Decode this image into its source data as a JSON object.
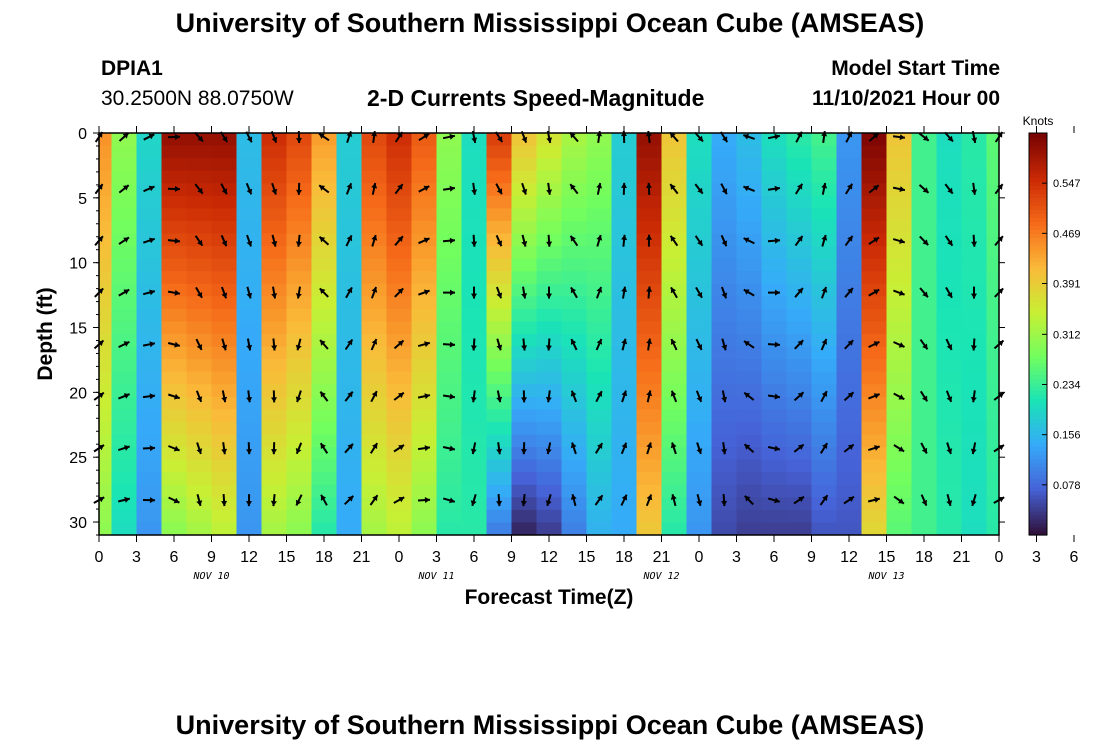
{
  "header": {
    "title": "University of Southern Mississippi Ocean Cube (AMSEAS)",
    "station_id": "DPIA1",
    "station_coords": "30.2500N  88.0750W",
    "plot_title": "2-D Currents Speed-Magnitude",
    "model_start_label": "Model Start Time",
    "model_start_value": "11/10/2021 Hour 00"
  },
  "footer": {
    "title": "University of Southern Mississippi Ocean Cube (AMSEAS)"
  },
  "colors": {
    "colormap": [
      "#30123b",
      "#4662d7",
      "#36aaf9",
      "#1ae4b6",
      "#72fe5e",
      "#c8ef34",
      "#faba39",
      "#f66b19",
      "#cb2a04",
      "#7a0403"
    ],
    "arrow": "#000000",
    "frame": "#000000"
  },
  "chart_data": {
    "type": "heatmap",
    "title": "2-D Currents Speed-Magnitude",
    "xlabel": "Forecast Time(Z)",
    "ylabel": "Depth (ft)",
    "ylim": [
      0,
      31
    ],
    "y_inverted": true,
    "y_ticks": [
      0,
      5,
      10,
      15,
      20,
      25,
      30
    ],
    "xlim_hours": [
      0,
      72
    ],
    "x_tick_step_hours": 3,
    "x_tick_labels": [
      "0",
      "3",
      "6",
      "9",
      "12",
      "15",
      "18",
      "21",
      "0",
      "3",
      "6",
      "9",
      "12",
      "15",
      "18",
      "21",
      "0",
      "3",
      "6",
      "9",
      "12",
      "15",
      "18",
      "21",
      "0",
      "3",
      "6",
      "9",
      "12",
      "15",
      "18",
      "21",
      "0"
    ],
    "day_labels": [
      {
        "label": "NOV 10",
        "hour": 9
      },
      {
        "label": "NOV 11",
        "hour": 27
      },
      {
        "label": "NOV 12",
        "hour": 45
      },
      {
        "label": "NOV 13",
        "hour": 63
      }
    ],
    "colorbar": {
      "label": "Knots",
      "range": [
        0,
        0.625
      ],
      "ticks": [
        "0.078",
        "0.156",
        "0.234",
        "0.312",
        "0.391",
        "0.469",
        "0.547"
      ]
    },
    "speed_profile_surface": [
      0.45,
      0.3,
      0.19,
      0.6,
      0.6,
      0.6,
      0.16,
      0.55,
      0.52,
      0.44,
      0.18,
      0.52,
      0.55,
      0.5,
      0.3,
      0.2,
      0.53,
      0.4,
      0.36,
      0.32,
      0.3,
      0.18,
      0.6,
      0.4,
      0.2,
      0.14,
      0.16,
      0.2,
      0.22,
      0.24,
      0.12,
      0.62,
      0.4,
      0.24,
      0.2,
      0.22,
      0.26
    ],
    "speed_profile_bottom": [
      0.3,
      0.2,
      0.12,
      0.3,
      0.32,
      0.34,
      0.12,
      0.32,
      0.3,
      0.22,
      0.14,
      0.32,
      0.34,
      0.3,
      0.22,
      0.22,
      0.1,
      0.02,
      0.04,
      0.1,
      0.15,
      0.14,
      0.4,
      0.22,
      0.12,
      0.05,
      0.04,
      0.04,
      0.04,
      0.06,
      0.06,
      0.38,
      0.26,
      0.24,
      0.22,
      0.2,
      0.22
    ],
    "vector_depths_ft": [
      0,
      4,
      8,
      12,
      16,
      20,
      24,
      28
    ],
    "vector_times_hours": [
      0,
      2,
      4,
      6,
      8,
      10,
      12,
      14,
      16,
      18,
      20,
      22,
      24,
      26,
      28,
      30,
      32,
      34,
      36,
      38,
      40,
      42,
      44,
      46,
      48,
      50,
      52,
      54,
      56,
      58,
      60,
      62,
      64,
      66,
      68,
      70,
      72
    ],
    "vector_direction_deg": [
      45,
      60,
      75,
      100,
      150,
      160,
      165,
      170,
      190,
      -45,
      30,
      20,
      45,
      70,
      90,
      180,
      160,
      170,
      180,
      -30,
      20,
      10,
      5,
      -30,
      150,
      160,
      -60,
      90,
      40,
      20,
      40,
      60,
      110,
      140,
      150,
      180,
      45
    ]
  }
}
